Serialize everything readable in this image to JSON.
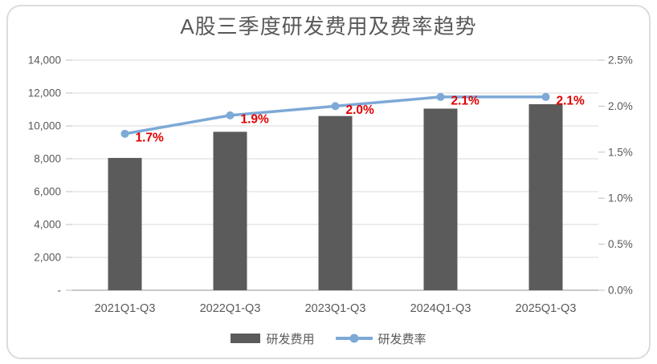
{
  "colors": {
    "text": "#595959",
    "gridline": "#D9D9D9",
    "axis_line": "#C8C8C8",
    "tick_mark": "#BFBFBF",
    "frame_border": "#DCDCDC",
    "bar": "#5B5B5B",
    "line": "#7CA9D6",
    "data_label": "#E00000"
  },
  "chart_data": {
    "type": "combo",
    "title": "A股三季度研发费用及费率趋势",
    "categories": [
      "2021Q1-Q3",
      "2022Q1-Q3",
      "2023Q1-Q3",
      "2024Q1-Q3",
      "2025Q1-Q3"
    ],
    "series": [
      {
        "name": "研发费用",
        "type": "bar",
        "axis": "left",
        "color": "#5B5B5B",
        "values": [
          8050,
          9640,
          10600,
          11050,
          11320
        ]
      },
      {
        "name": "研发费率",
        "type": "line",
        "axis": "right",
        "color": "#7CA9D6",
        "values": [
          1.7,
          1.9,
          2.0,
          2.1,
          2.1
        ],
        "data_labels": [
          "1.7%",
          "1.9%",
          "2.0%",
          "2.1%",
          "2.1%"
        ],
        "data_label_color": "#E00000"
      }
    ],
    "left_axis": {
      "min": 0,
      "max": 14000,
      "step": 2000,
      "tick_labels": [
        "14,000",
        "12,000",
        "10,000",
        "8,000",
        "6,000",
        "4,000",
        "2,000",
        "-"
      ]
    },
    "right_axis": {
      "min": 0,
      "max": 2.5,
      "step": 0.5,
      "tick_labels": [
        "2.5%",
        "2.0%",
        "1.5%",
        "1.0%",
        "0.5%",
        "0.0%"
      ]
    },
    "grid": "horizontal",
    "legend_position": "bottom"
  }
}
